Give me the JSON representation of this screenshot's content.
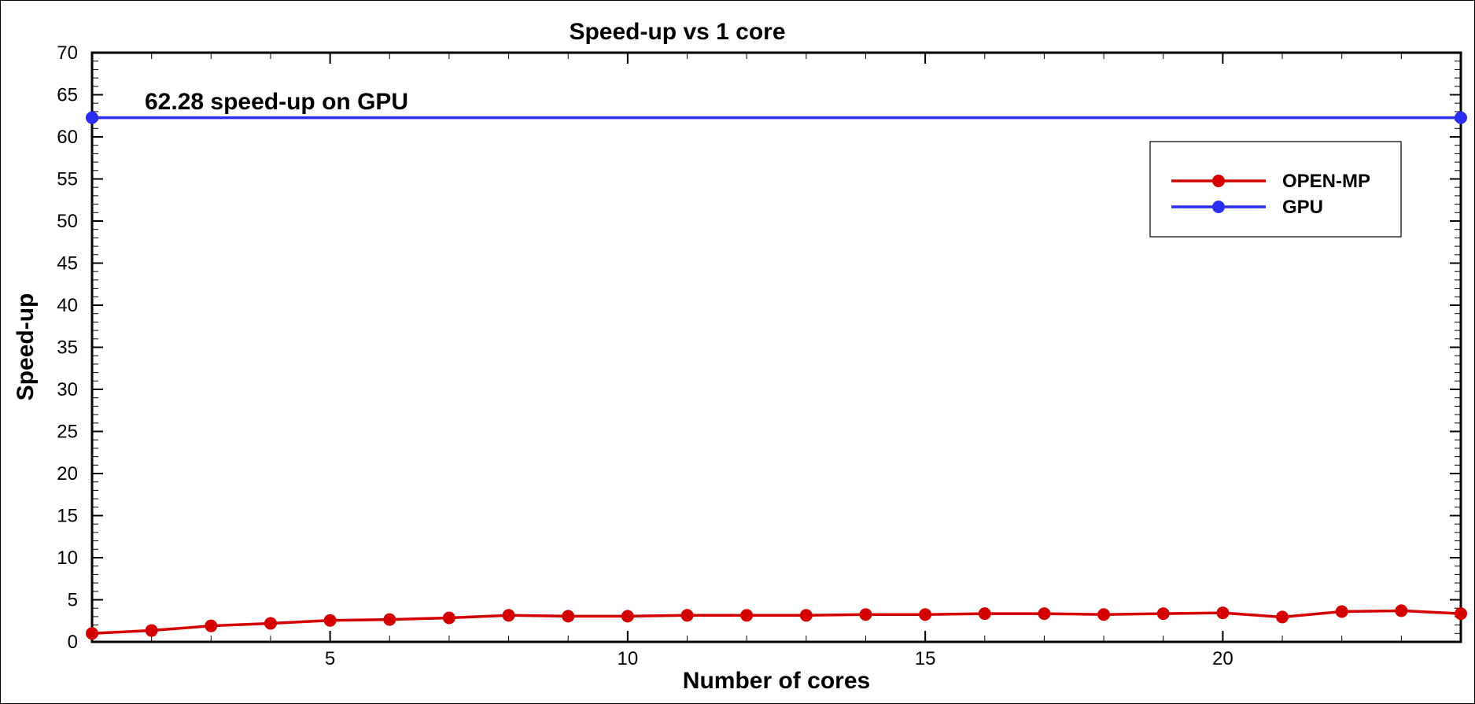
{
  "chart_data": {
    "type": "line",
    "title": "Speed-up vs 1 core",
    "xlabel": "Number of cores",
    "ylabel": "Speed-up",
    "xlim": [
      1,
      24
    ],
    "ylim": [
      0,
      70
    ],
    "x_ticks": [
      5,
      10,
      15,
      20
    ],
    "y_ticks": [
      0,
      5,
      10,
      15,
      20,
      25,
      30,
      35,
      40,
      45,
      50,
      55,
      60,
      65,
      70
    ],
    "legend_position": "top-right",
    "annotation": "62.28 speed-up on GPU",
    "series": [
      {
        "name": "OPEN-MP",
        "color": "#d40000",
        "x": [
          1,
          2,
          3,
          4,
          5,
          6,
          7,
          8,
          9,
          10,
          11,
          12,
          13,
          14,
          15,
          16,
          17,
          18,
          19,
          20,
          21,
          22,
          23,
          24
        ],
        "values": [
          1.0,
          1.35,
          1.9,
          2.2,
          2.55,
          2.65,
          2.85,
          3.15,
          3.05,
          3.05,
          3.15,
          3.15,
          3.15,
          3.25,
          3.25,
          3.35,
          3.35,
          3.25,
          3.35,
          3.45,
          2.95,
          3.6,
          3.7,
          3.35
        ]
      },
      {
        "name": "GPU",
        "color": "#2a2ef2",
        "x": [
          1,
          24
        ],
        "values": [
          62.28,
          62.28
        ]
      }
    ]
  }
}
